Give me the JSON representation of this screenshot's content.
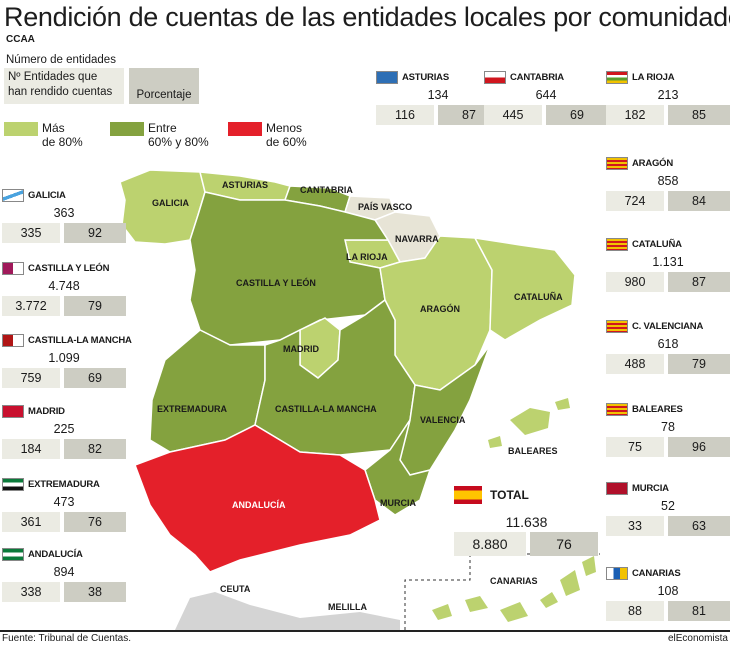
{
  "title": "Rendición de cuentas de las entidades locales por comunidades",
  "legend": {
    "ccaa": "CCAA",
    "num_entidades": "Número de entidades",
    "rendido_line1": "Nº Entidades que",
    "rendido_line2": "han rendido cuentas",
    "porcentaje": "Porcentaje",
    "categories": [
      {
        "label1": "Más",
        "label2": "de 80%",
        "color": "#bcd26f"
      },
      {
        "label1": "Entre",
        "label2": "60% y 80%",
        "color": "#84a23f"
      },
      {
        "label1": "Menos",
        "label2": "de 60%",
        "color": "#e4202a"
      }
    ]
  },
  "colors": {
    "high": "#bcd26f",
    "mid": "#84a23f",
    "low": "#e4202a",
    "other": "#e7e4d6",
    "sea_gray": "#cfcfcf"
  },
  "regions": {
    "asturias": {
      "name": "ASTURIAS",
      "total": "134",
      "rendido": "116",
      "pct": "87"
    },
    "cantabria": {
      "name": "CANTABRIA",
      "total": "644",
      "rendido": "445",
      "pct": "69"
    },
    "rioja": {
      "name": "LA RIOJA",
      "total": "213",
      "rendido": "182",
      "pct": "85"
    },
    "galicia": {
      "name": "GALICIA",
      "total": "363",
      "rendido": "335",
      "pct": "92"
    },
    "aragon": {
      "name": "ARAGÓN",
      "total": "858",
      "rendido": "724",
      "pct": "84"
    },
    "castleon": {
      "name": "CASTILLA Y LEÓN",
      "total": "4.748",
      "rendido": "3.772",
      "pct": "79"
    },
    "cataluna": {
      "name": "CATALUÑA",
      "total": "1.131",
      "rendido": "980",
      "pct": "87"
    },
    "castmancha": {
      "name": "CASTILLA-LA MANCHA",
      "total": "1.099",
      "rendido": "759",
      "pct": "69"
    },
    "valenciana": {
      "name": "C. VALENCIANA",
      "total": "618",
      "rendido": "488",
      "pct": "79"
    },
    "madrid": {
      "name": "MADRID",
      "total": "225",
      "rendido": "184",
      "pct": "82"
    },
    "baleares": {
      "name": "BALEARES",
      "total": "78",
      "rendido": "75",
      "pct": "96"
    },
    "extremadura": {
      "name": "EXTREMADURA",
      "total": "473",
      "rendido": "361",
      "pct": "76"
    },
    "murcia": {
      "name": "MURCIA",
      "total": "52",
      "rendido": "33",
      "pct": "63"
    },
    "andalucia": {
      "name": "ANDALUCÍA",
      "total": "894",
      "rendido": "338",
      "pct": "38"
    },
    "canarias": {
      "name": "CANARIAS",
      "total": "108",
      "rendido": "88",
      "pct": "81"
    }
  },
  "total": {
    "name": "TOTAL",
    "total": "11.638",
    "rendido": "8.880",
    "pct": "76"
  },
  "map_labels": {
    "galicia": "GALICIA",
    "asturias": "ASTURIAS",
    "cantabria": "CANTABRIA",
    "paisvasco": "PAÍS VASCO",
    "navarra": "NAVARRA",
    "rioja": "LA RIOJA",
    "castleon": "CASTILLA Y LEÓN",
    "aragon": "ARAGÓN",
    "cataluna": "CATALUÑA",
    "madrid": "MADRID",
    "extremadura": "EXTREMADURA",
    "castmancha": "CASTILLA-LA MANCHA",
    "valencia": "VALENCIA",
    "baleares": "BALEARES",
    "andalucia": "ANDALUCÍA",
    "murcia": "MURCIA",
    "ceuta": "CEUTA",
    "melilla": "MELILLA",
    "canarias": "CANARIAS"
  },
  "footer": {
    "source": "Fuente: Tribunal de Cuentas.",
    "brand": "elEconomista"
  }
}
